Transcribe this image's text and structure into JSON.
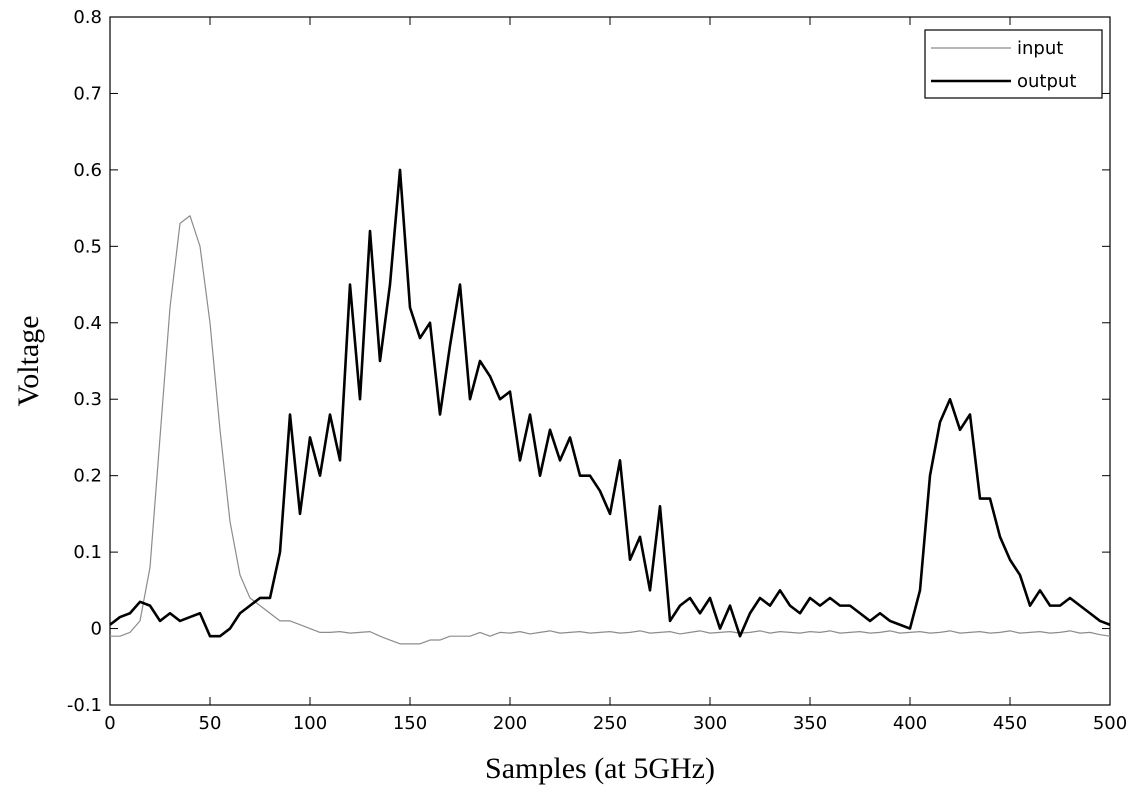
{
  "chart_data": {
    "type": "line",
    "x_label": "Samples (at 5GHz)",
    "y_label": "Voltage",
    "x": [
      0,
      5,
      10,
      15,
      20,
      25,
      30,
      35,
      40,
      45,
      50,
      55,
      60,
      65,
      70,
      75,
      80,
      85,
      90,
      95,
      100,
      105,
      110,
      115,
      120,
      125,
      130,
      135,
      140,
      145,
      150,
      155,
      160,
      165,
      170,
      175,
      180,
      185,
      190,
      195,
      200,
      205,
      210,
      215,
      220,
      225,
      230,
      235,
      240,
      245,
      250,
      255,
      260,
      265,
      270,
      275,
      280,
      285,
      290,
      295,
      300,
      305,
      310,
      315,
      320,
      325,
      330,
      335,
      340,
      345,
      350,
      355,
      360,
      365,
      370,
      375,
      380,
      385,
      390,
      395,
      400,
      405,
      410,
      415,
      420,
      425,
      430,
      435,
      440,
      445,
      450,
      455,
      460,
      465,
      470,
      475,
      480,
      485,
      490,
      495,
      500
    ],
    "series": [
      {
        "name": "input",
        "color": "#8c8c8c",
        "width": 1.2,
        "values": [
          -0.01,
          -0.01,
          -0.005,
          0.01,
          0.08,
          0.25,
          0.42,
          0.53,
          0.54,
          0.5,
          0.4,
          0.26,
          0.14,
          0.07,
          0.04,
          0.03,
          0.02,
          0.01,
          0.01,
          0.005,
          0,
          -0.005,
          -0.005,
          -0.004,
          -0.006,
          -0.005,
          -0.004,
          -0.01,
          -0.015,
          -0.02,
          -0.02,
          -0.02,
          -0.015,
          -0.015,
          -0.01,
          -0.01,
          -0.01,
          -0.005,
          -0.01,
          -0.005,
          -0.006,
          -0.004,
          -0.007,
          -0.005,
          -0.003,
          -0.006,
          -0.005,
          -0.004,
          -0.006,
          -0.005,
          -0.004,
          -0.006,
          -0.005,
          -0.003,
          -0.006,
          -0.005,
          -0.004,
          -0.007,
          -0.005,
          -0.003,
          -0.006,
          -0.005,
          -0.004,
          -0.006,
          -0.005,
          -0.003,
          -0.006,
          -0.004,
          -0.005,
          -0.006,
          -0.004,
          -0.005,
          -0.003,
          -0.006,
          -0.005,
          -0.004,
          -0.006,
          -0.005,
          -0.003,
          -0.006,
          -0.005,
          -0.004,
          -0.006,
          -0.005,
          -0.003,
          -0.006,
          -0.005,
          -0.004,
          -0.006,
          -0.005,
          -0.003,
          -0.006,
          -0.005,
          -0.004,
          -0.006,
          -0.005,
          -0.003,
          -0.006,
          -0.005,
          -0.008,
          -0.01
        ]
      },
      {
        "name": "output",
        "color": "#000000",
        "width": 2.6,
        "values": [
          0.005,
          0.015,
          0.02,
          0.035,
          0.03,
          0.01,
          0.02,
          0.01,
          0.015,
          0.02,
          -0.01,
          -0.01,
          0,
          0.02,
          0.03,
          0.04,
          0.04,
          0.1,
          0.28,
          0.15,
          0.25,
          0.2,
          0.28,
          0.22,
          0.45,
          0.3,
          0.52,
          0.35,
          0.45,
          0.6,
          0.42,
          0.38,
          0.4,
          0.28,
          0.37,
          0.45,
          0.3,
          0.35,
          0.33,
          0.3,
          0.31,
          0.22,
          0.28,
          0.2,
          0.26,
          0.22,
          0.25,
          0.2,
          0.2,
          0.18,
          0.15,
          0.22,
          0.09,
          0.12,
          0.05,
          0.16,
          0.01,
          0.03,
          0.04,
          0.02,
          0.04,
          0,
          0.03,
          -0.01,
          0.02,
          0.04,
          0.03,
          0.05,
          0.03,
          0.02,
          0.04,
          0.03,
          0.04,
          0.03,
          0.03,
          0.02,
          0.01,
          0.02,
          0.01,
          0.005,
          0,
          0.05,
          0.2,
          0.27,
          0.3,
          0.26,
          0.28,
          0.17,
          0.17,
          0.12,
          0.09,
          0.07,
          0.03,
          0.05,
          0.03,
          0.03,
          0.04,
          0.03,
          0.02,
          0.01,
          0.005
        ]
      }
    ],
    "xlim": [
      0,
      500
    ],
    "xticks": [
      0,
      50,
      100,
      150,
      200,
      250,
      300,
      350,
      400,
      450,
      500
    ],
    "ylim": [
      -0.1,
      0.8
    ],
    "yticks": [
      -0.1,
      0,
      0.1,
      0.2,
      0.3,
      0.4,
      0.5,
      0.6,
      0.7,
      0.8
    ],
    "legend": "upper right"
  }
}
